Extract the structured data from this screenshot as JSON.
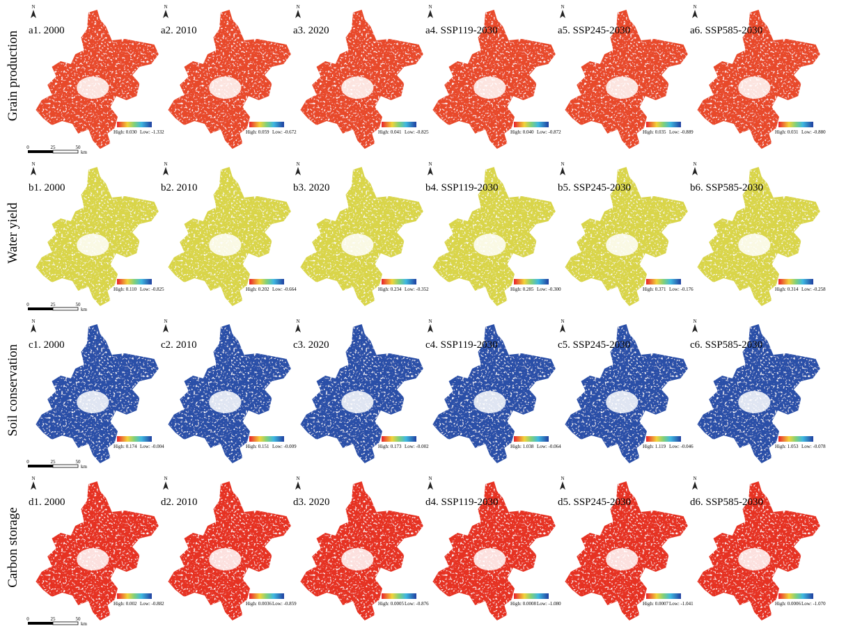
{
  "north": "N",
  "scale_bar": {
    "ticks": [
      "0",
      "25",
      "50"
    ],
    "unit": "km"
  },
  "rows": [
    {
      "label": "Grain production",
      "color": "#e8492b",
      "panels": [
        {
          "title": "a1. 2000",
          "high": "High: 0.030",
          "low": "Low: -1.332"
        },
        {
          "title": "a2. 2010",
          "high": "High: 0.059",
          "low": "Low: -0.672"
        },
        {
          "title": "a3. 2020",
          "high": "High: 0.041",
          "low": "Low: -0.825"
        },
        {
          "title": "a4. SSP119-2030",
          "high": "High: 0.040",
          "low": "Low: -0.872"
        },
        {
          "title": "a5. SSP245-2030",
          "high": "High: 0.035",
          "low": "Low: -0.889"
        },
        {
          "title": "a6. SSP585-2030",
          "high": "High: 0.031",
          "low": "Low: -0.880"
        }
      ]
    },
    {
      "label": "Water yield",
      "color": "#d9d54a",
      "panels": [
        {
          "title": "b1. 2000",
          "high": "High: 0.110",
          "low": "Low: -0.825"
        },
        {
          "title": "b2. 2010",
          "high": "High: 0.202",
          "low": "Low: -0.664"
        },
        {
          "title": "b3. 2020",
          "high": "High: 0.234",
          "low": "Low: -0.352"
        },
        {
          "title": "b4. SSP119-2030",
          "high": "High: 0.285",
          "low": "Low: -0.300"
        },
        {
          "title": "b5. SSP245-2030",
          "high": "High: 0.371",
          "low": "Low: -0.176"
        },
        {
          "title": "b6. SSP585-2030",
          "high": "High: 0.314",
          "low": "Low: -0.258"
        }
      ]
    },
    {
      "label": "Soil conservation",
      "color": "#2a4fa8",
      "panels": [
        {
          "title": "c1. 2000",
          "high": "High: 0.174",
          "low": "Low: -0.004"
        },
        {
          "title": "c2. 2010",
          "high": "High: 0.151",
          "low": "Low: -0.009"
        },
        {
          "title": "c3. 2020",
          "high": "High: 0.173",
          "low": "Low: -0.002"
        },
        {
          "title": "c4. SSP119-2030",
          "high": "High: 1.038",
          "low": "Low: -0.064"
        },
        {
          "title": "c5. SSP245-2030",
          "high": "High: 1.119",
          "low": "Low: -0.046"
        },
        {
          "title": "c6. SSP585-2030",
          "high": "High: 1.053",
          "low": "Low: -0.078"
        }
      ]
    },
    {
      "label": "Carbon storage",
      "color": "#e63322",
      "panels": [
        {
          "title": "d1. 2000",
          "high": "High: 0.002",
          "low": "Low: -0.882"
        },
        {
          "title": "d2. 2010",
          "high": "High: 0.0036",
          "low": "Low: -0.859"
        },
        {
          "title": "d3. 2020",
          "high": "High: 0.0005",
          "low": "Low: -0.876"
        },
        {
          "title": "d4. SSP119-2030",
          "high": "High: 0.0008",
          "low": "Low: -1.080"
        },
        {
          "title": "d5. SSP245-2030",
          "high": "High: 0.0007",
          "low": "Low: -1.041"
        },
        {
          "title": "d6. SSP585-2030",
          "high": "High: 0.0006",
          "low": "Low: -1.070"
        }
      ]
    }
  ]
}
